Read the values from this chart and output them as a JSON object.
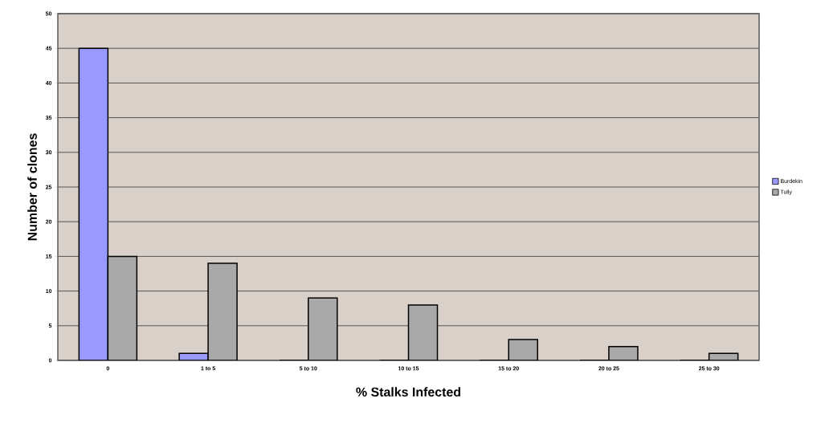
{
  "chart_data": {
    "type": "bar",
    "xlabel": "% Stalks Infected",
    "ylabel": "Number of clones",
    "categories": [
      "0",
      "1 to 5",
      "5 to 10",
      "10 to 15",
      "15 to 20",
      "20 to 25",
      "25 to 30"
    ],
    "series": [
      {
        "name": "Burdekin",
        "color": "#9999ff",
        "values": [
          45,
          1,
          0,
          0,
          0,
          0,
          0
        ]
      },
      {
        "name": "Tully",
        "color": "#a9a9a9",
        "values": [
          15,
          14,
          9,
          8,
          3,
          2,
          1
        ]
      }
    ],
    "ylim": [
      0,
      50
    ],
    "yticks": [
      0,
      5,
      10,
      15,
      20,
      25,
      30,
      35,
      40,
      45,
      50
    ],
    "grid": "y",
    "legend": "right"
  }
}
